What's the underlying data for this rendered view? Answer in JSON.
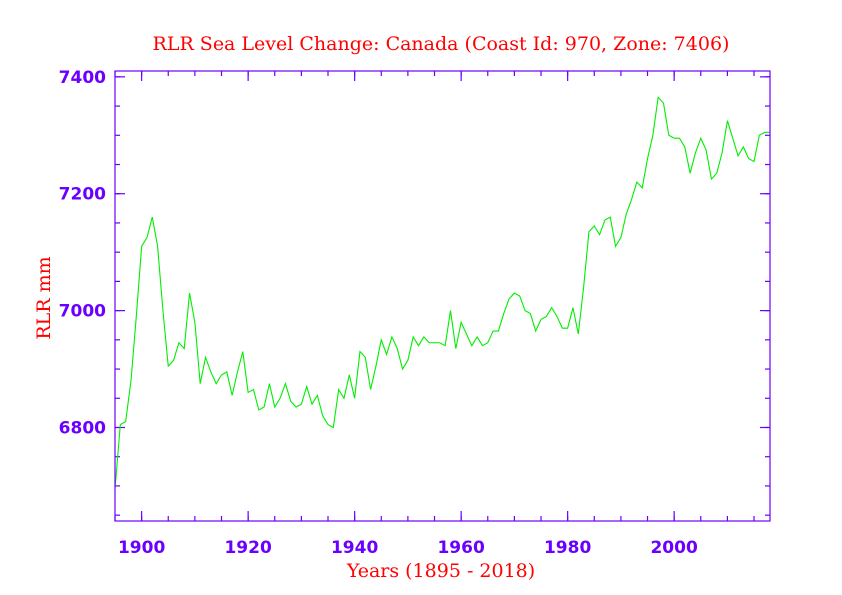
{
  "chart_data": {
    "type": "line",
    "title": "RLR Sea Level Change: Canada (Coast Id: 970, Zone: 7406)",
    "xlabel": "Years (1895 - 2018)",
    "ylabel": "RLR mm",
    "xlim": [
      1895,
      2018
    ],
    "ylim": [
      6640,
      7410
    ],
    "x_ticks": [
      1900,
      1920,
      1940,
      1960,
      1980,
      2000
    ],
    "y_ticks": [
      6800,
      7000,
      7200,
      7400
    ],
    "x_minor_step": 5,
    "y_minor_step": 50,
    "grid": false,
    "colors": {
      "series": "#00ee00",
      "axes": "#6a00ff",
      "text": "#ff0000"
    },
    "series": [
      {
        "x": [
          1895,
          1896,
          1897,
          1898,
          1899,
          1900,
          1901,
          1902,
          1903,
          1904,
          1905,
          1906,
          1907,
          1908,
          1909,
          1910,
          1911,
          1912,
          1913,
          1914,
          1915,
          1916,
          1917,
          1918,
          1919,
          1920,
          1921,
          1922,
          1923,
          1924,
          1925,
          1926,
          1927,
          1928,
          1929,
          1930,
          1931,
          1932,
          1933,
          1934,
          1935,
          1936,
          1937,
          1938,
          1939,
          1940,
          1941,
          1942,
          1943,
          1944,
          1945,
          1946,
          1947,
          1948,
          1949,
          1950,
          1951,
          1952,
          1953,
          1954,
          1955,
          1956,
          1957,
          1958,
          1959,
          1960,
          1961,
          1962,
          1963,
          1964,
          1965,
          1966,
          1967,
          1968,
          1969,
          1970,
          1971,
          1972,
          1973,
          1974,
          1975,
          1976,
          1977,
          1978,
          1979,
          1980,
          1981,
          1982,
          1983,
          1984,
          1985,
          1986,
          1987,
          1988,
          1989,
          1990,
          1991,
          1992,
          1993,
          1994,
          1995,
          1996,
          1997,
          1998,
          1999,
          2000,
          2001,
          2002,
          2003,
          2004,
          2005,
          2006,
          2007,
          2008,
          2009,
          2010,
          2011,
          2012,
          2013,
          2014,
          2015,
          2016,
          2017,
          2018
        ],
        "values": [
          6695,
          6805,
          6810,
          6880,
          6990,
          7110,
          7125,
          7160,
          7110,
          7000,
          6905,
          6915,
          6945,
          6935,
          7030,
          6980,
          6875,
          6920,
          6895,
          6875,
          6890,
          6895,
          6855,
          6895,
          6930,
          6860,
          6865,
          6830,
          6835,
          6875,
          6835,
          6850,
          6875,
          6845,
          6835,
          6840,
          6870,
          6840,
          6855,
          6820,
          6805,
          6800,
          6865,
          6850,
          6890,
          6850,
          6930,
          6920,
          6865,
          6905,
          6950,
          6925,
          6955,
          6935,
          6900,
          6915,
          6955,
          6940,
          6955,
          6945,
          6945,
          6945,
          6940,
          7000,
          6935,
          6980,
          6960,
          6940,
          6955,
          6940,
          6945,
          6965,
          6965,
          6995,
          7020,
          7030,
          7025,
          7000,
          6995,
          6965,
          6985,
          6990,
          7005,
          6990,
          6970,
          6970,
          7005,
          6960,
          7040,
          7135,
          7145,
          7130,
          7155,
          7160,
          7110,
          7125,
          7165,
          7190,
          7220,
          7210,
          7260,
          7300,
          7365,
          7355,
          7300,
          7295,
          7295,
          7280,
          7235,
          7270,
          7295,
          7275,
          7225,
          7235,
          7270,
          7325,
          7295,
          7265,
          7280,
          7260,
          7255,
          7300,
          7305,
          7305
        ]
      }
    ]
  }
}
